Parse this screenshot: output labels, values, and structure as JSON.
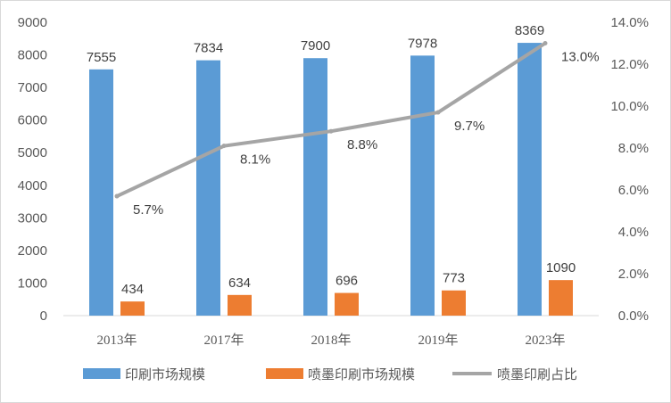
{
  "chart_data": {
    "type": "bar",
    "categories": [
      "2013年",
      "2017年",
      "2018年",
      "2019年",
      "2023年"
    ],
    "series": [
      {
        "name": "印刷市场规模",
        "type": "bar",
        "axis": "left",
        "color": "#5b9bd5",
        "values": [
          7555,
          7834,
          7900,
          7978,
          8369
        ],
        "labels": [
          "7555",
          "7834",
          "7900",
          "7978",
          "8369"
        ]
      },
      {
        "name": "喷墨印刷市场规模",
        "type": "bar",
        "axis": "left",
        "color": "#ed7d31",
        "values": [
          434,
          634,
          696,
          773,
          1090
        ],
        "labels": [
          "434",
          "634",
          "696",
          "773",
          "1090"
        ]
      },
      {
        "name": "喷墨印刷占比",
        "type": "line",
        "axis": "right",
        "color": "#a5a5a5",
        "values": [
          5.7,
          8.1,
          8.8,
          9.7,
          13.0
        ],
        "labels": [
          "5.7%",
          "8.1%",
          "8.8%",
          "9.7%",
          "13.0%"
        ]
      }
    ],
    "y_left": {
      "min": 0,
      "max": 9000,
      "ticks": [
        0,
        1000,
        2000,
        3000,
        4000,
        5000,
        6000,
        7000,
        8000,
        9000
      ],
      "tick_labels": [
        "0",
        "1000",
        "2000",
        "3000",
        "4000",
        "5000",
        "6000",
        "7000",
        "8000",
        "9000"
      ]
    },
    "y_right": {
      "min": 0,
      "max": 14,
      "ticks": [
        0,
        2,
        4,
        6,
        8,
        10,
        12,
        14
      ],
      "tick_labels": [
        "0.0%",
        "2.0%",
        "4.0%",
        "6.0%",
        "8.0%",
        "10.0%",
        "12.0%",
        "14.0%"
      ]
    },
    "grid": false,
    "legend": "bottom"
  }
}
